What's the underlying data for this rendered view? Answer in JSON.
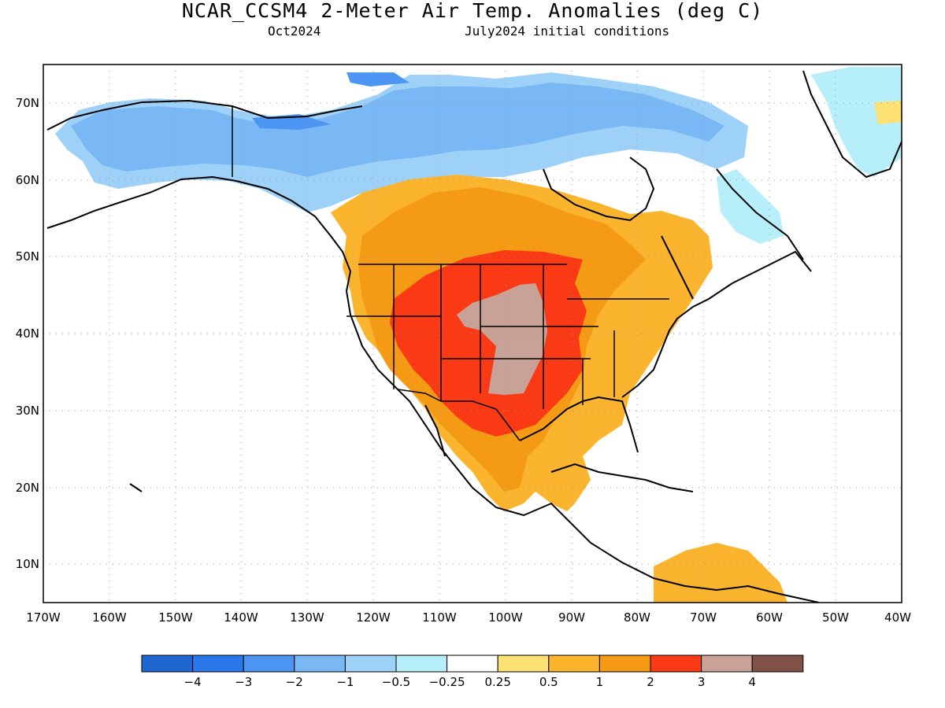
{
  "title": "NCAR_CCSM4 2-Meter Air Temp. Anomalies (deg C)",
  "subtitle_left": "Oct2024",
  "subtitle_right": "July2024 initial conditions",
  "map": {
    "projection": "equirectangular",
    "lon_range": [
      -170,
      -40
    ],
    "lat_range": [
      5,
      75
    ],
    "gridlines": "dotted",
    "lat_labels": [
      "70N",
      "60N",
      "50N",
      "40N",
      "30N",
      "20N",
      "10N"
    ],
    "lon_labels": [
      "170W",
      "160W",
      "150W",
      "140W",
      "130W",
      "120W",
      "110W",
      "100W",
      "90W",
      "80W",
      "70W",
      "60W",
      "50W",
      "40W"
    ],
    "anomaly_regions": [
      {
        "name": "arctic-cold",
        "level": "-1 to -0.5",
        "color": "#9dd1f7"
      },
      {
        "name": "alaska-cold",
        "level": "-2 to -1",
        "color": "#7ab8f5"
      },
      {
        "name": "canada-warm",
        "level": "0.5 to 1",
        "color": "#fbb42d"
      },
      {
        "name": "plains-warm",
        "level": "1 to 2",
        "color": "#f59a14"
      },
      {
        "name": "central-hot",
        "level": "2 to 3",
        "color": "#f93a15"
      },
      {
        "name": "central-hottest",
        "level": "3 to 4",
        "color": "#c8a296"
      }
    ]
  },
  "colorbar": {
    "colors": [
      "#1f66d1",
      "#2a78ea",
      "#4c95f2",
      "#7ab8f5",
      "#9dd1f7",
      "#b6effa",
      "#ffffff",
      "#fde174",
      "#fbb42d",
      "#f59a14",
      "#f93a15",
      "#c8a296",
      "#7f5147"
    ],
    "labels": [
      "−4",
      "−3",
      "−2",
      "−1",
      "−0.5",
      "−0.25",
      "0.25",
      "0.5",
      "1",
      "2",
      "3",
      "4"
    ]
  }
}
